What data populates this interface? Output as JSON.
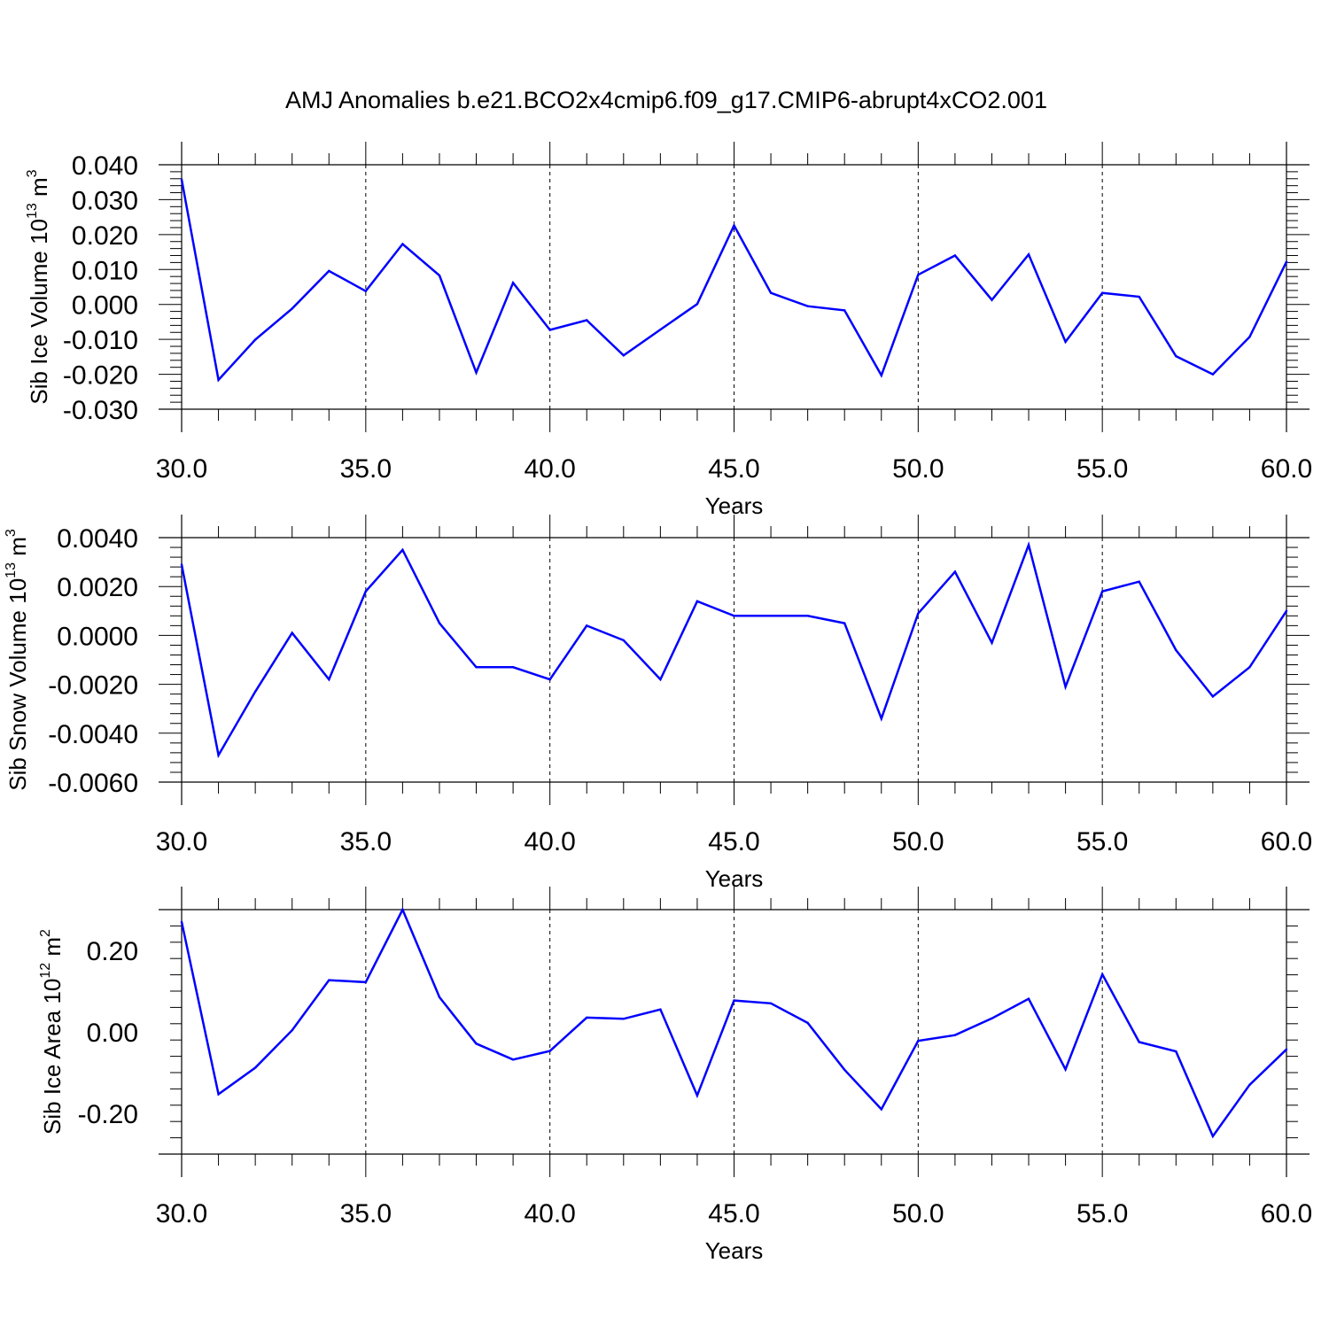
{
  "title": "AMJ Anomalies b.e21.BCO2x4cmip6.f09_g17.CMIP6-abrupt4xCO2.001",
  "line_color": "#0000ff",
  "chart_data": [
    {
      "type": "line",
      "title": "",
      "xlabel": "Years",
      "ylabel": "Sib Ice Volume 10",
      "ylabel_sup": "13",
      "ylabel_unit": "m",
      "ylabel_unit_sup": "3",
      "xlim": [
        30,
        60
      ],
      "ylim": [
        -0.03,
        0.04
      ],
      "xticks": [
        30,
        35,
        40,
        45,
        50,
        55,
        60
      ],
      "xtick_labels": [
        "30.0",
        "35.0",
        "40.0",
        "45.0",
        "50.0",
        "55.0",
        "60.0"
      ],
      "yticks": [
        0.04,
        0.03,
        0.02,
        0.01,
        0.0,
        -0.01,
        -0.02,
        -0.03
      ],
      "ytick_labels": [
        "0.040",
        "0.030",
        "0.020",
        "0.010",
        "0.000",
        "-0.010",
        "-0.020",
        "-0.030"
      ],
      "grid": "dashed vertical at major x ticks",
      "x": [
        30,
        31,
        32,
        33,
        34,
        35,
        36,
        37,
        38,
        39,
        40,
        41,
        42,
        43,
        44,
        45,
        46,
        47,
        48,
        49,
        50,
        51,
        52,
        53,
        54,
        55,
        56,
        57,
        58,
        59,
        60
      ],
      "values": [
        0.0358,
        -0.0216,
        -0.0101,
        -0.0012,
        0.0096,
        0.0038,
        0.0173,
        0.0083,
        -0.0195,
        0.0062,
        -0.0073,
        -0.0045,
        -0.0146,
        -0.0072,
        0.0001,
        0.0226,
        0.0033,
        -0.0005,
        -0.0017,
        -0.0203,
        0.0085,
        0.014,
        0.0013,
        0.0143,
        -0.0107,
        0.0033,
        0.0022,
        -0.0148,
        -0.02,
        -0.0093,
        0.0122
      ]
    },
    {
      "type": "line",
      "title": "",
      "xlabel": "Years",
      "ylabel": "Sib Snow Volume 10",
      "ylabel_sup": "13",
      "ylabel_unit": "m",
      "ylabel_unit_sup": "3",
      "xlim": [
        30,
        60
      ],
      "ylim": [
        -0.006,
        0.004
      ],
      "xticks": [
        30,
        35,
        40,
        45,
        50,
        55,
        60
      ],
      "xtick_labels": [
        "30.0",
        "35.0",
        "40.0",
        "45.0",
        "50.0",
        "55.0",
        "60.0"
      ],
      "yticks": [
        0.004,
        0.002,
        0.0,
        -0.002,
        -0.004,
        -0.006
      ],
      "ytick_labels": [
        "0.0040",
        "0.0020",
        "0.0000",
        "-0.0020",
        "-0.0040",
        "-0.0060"
      ],
      "grid": "dashed vertical at major x ticks",
      "x": [
        30,
        31,
        32,
        33,
        34,
        35,
        36,
        37,
        38,
        39,
        40,
        41,
        42,
        43,
        44,
        45,
        46,
        47,
        48,
        49,
        50,
        51,
        52,
        53,
        54,
        55,
        56,
        57,
        58,
        59,
        60
      ],
      "values": [
        0.0029,
        -0.0049,
        -0.0023,
        0.0001,
        -0.0018,
        0.0018,
        0.0035,
        0.0005,
        -0.0013,
        -0.0013,
        -0.0018,
        0.0004,
        -0.0002,
        -0.0018,
        0.0014,
        0.0008,
        0.0008,
        0.0008,
        0.0005,
        -0.0034,
        0.0009,
        0.0026,
        -0.0003,
        0.0037,
        -0.0021,
        0.0018,
        0.0022,
        -0.0006,
        -0.0025,
        -0.0013,
        0.001
      ]
    },
    {
      "type": "line",
      "title": "",
      "xlabel": "Years",
      "ylabel": "Sib Ice Area 10",
      "ylabel_sup": "12",
      "ylabel_unit": "m",
      "ylabel_unit_sup": "2",
      "xlim": [
        30,
        60
      ],
      "ylim": [
        -0.3,
        0.3
      ],
      "xticks": [
        30,
        35,
        40,
        45,
        50,
        55,
        60
      ],
      "xtick_labels": [
        "30.0",
        "35.0",
        "40.0",
        "45.0",
        "50.0",
        "55.0",
        "60.0"
      ],
      "yticks": [
        0.2,
        0.0,
        -0.2
      ],
      "ytick_labels": [
        "0.20",
        "0.00",
        "-0.20"
      ],
      "grid": "dashed vertical at major x ticks",
      "x": [
        30,
        31,
        32,
        33,
        34,
        35,
        36,
        37,
        38,
        39,
        40,
        41,
        42,
        43,
        44,
        45,
        46,
        47,
        48,
        49,
        50,
        51,
        52,
        53,
        54,
        55,
        56,
        57,
        58,
        59,
        60
      ],
      "values": [
        0.27,
        -0.153,
        -0.088,
        0.004,
        0.127,
        0.122,
        0.3,
        0.085,
        -0.029,
        -0.068,
        -0.047,
        0.035,
        0.032,
        0.055,
        -0.156,
        0.077,
        0.07,
        0.022,
        -0.093,
        -0.19,
        -0.022,
        -0.008,
        0.033,
        0.081,
        -0.092,
        0.141,
        -0.025,
        -0.048,
        -0.256,
        -0.13,
        -0.043
      ]
    }
  ]
}
